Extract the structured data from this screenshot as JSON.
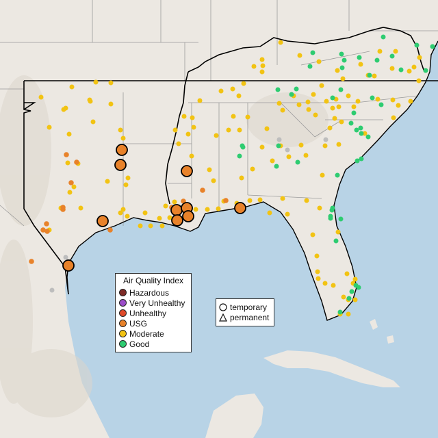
{
  "legend": {
    "title": "Air Quality Index",
    "items": [
      {
        "label": "Hazardous",
        "color": "#7e2b27"
      },
      {
        "label": "Very Unhealthy",
        "color": "#9b4dc8"
      },
      {
        "label": "Unhealthy",
        "color": "#e04a2a"
      },
      {
        "label": "USG",
        "color": "#e8822a"
      },
      {
        "label": "Moderate",
        "color": "#f2c313"
      },
      {
        "label": "Good",
        "color": "#2ecc71"
      }
    ]
  },
  "monitor_types": {
    "temporary": "temporary",
    "permanent": "permanent"
  },
  "colors": {
    "water": "#b8d3e6",
    "land": "#ece8e2",
    "highlight_border": "#000000",
    "state_border": "#9a9a9a",
    "unavailable_site": "#bdbdbd"
  }
}
